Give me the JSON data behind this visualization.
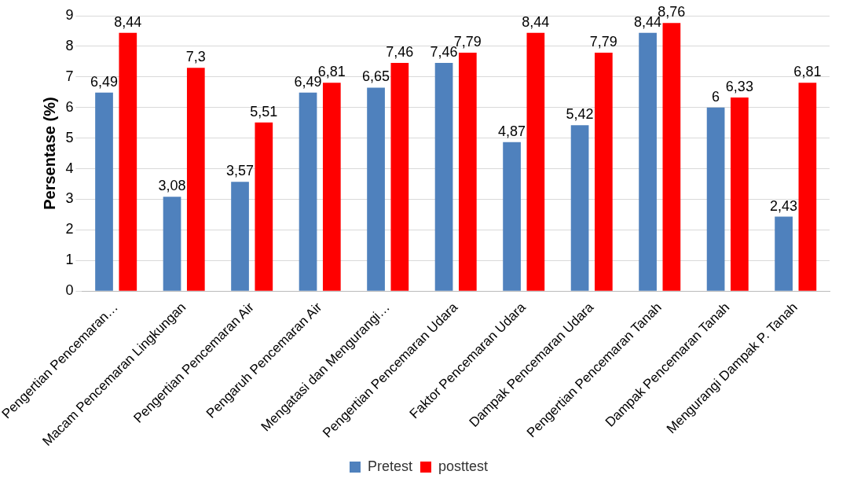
{
  "chart_data": {
    "type": "bar",
    "ylabel": "Persentase (%)",
    "categories": [
      "Pengertian Pencemaran…",
      "Macam Pencemaran Lingkungan",
      "Pengertian Pencemaran Air",
      "Pengaruh Pencemaran Air",
      "Mengatasi dan Mengurangi…",
      "Pengertian Pencemaran Udara",
      "Faktor Pencemaran Udara",
      "Dampak Pencemaran Udara",
      "Pengertian Pencemaran Tanah",
      "Dampak Pencemaran Tanah",
      "Mengurangi Dampak P. Tanah"
    ],
    "series": [
      {
        "name": "Pretest",
        "color": "#4f81bd",
        "values": [
          6.49,
          3.08,
          3.57,
          6.49,
          6.65,
          7.46,
          4.87,
          5.42,
          8.44,
          6,
          2.43
        ],
        "value_labels": [
          "6,49",
          "3,08",
          "3,57",
          "6,49",
          "6,65",
          "7,46",
          "4,87",
          "5,42",
          "8,44",
          "6",
          "2,43"
        ]
      },
      {
        "name": "posttest",
        "color": "#ff0000",
        "values": [
          8.44,
          7.3,
          5.51,
          6.81,
          7.46,
          7.79,
          8.44,
          7.79,
          8.76,
          6.33,
          6.81
        ],
        "value_labels": [
          "8,44",
          "7,3",
          "5,51",
          "6,81",
          "7,46",
          "7,79",
          "8,44",
          "7,79",
          "8,76",
          "6,33",
          "6,81"
        ]
      }
    ],
    "ylim": [
      0,
      9
    ],
    "yticks": [
      0,
      1,
      2,
      3,
      4,
      5,
      6,
      7,
      8,
      9
    ],
    "grid": "y",
    "legend": "bottom"
  }
}
